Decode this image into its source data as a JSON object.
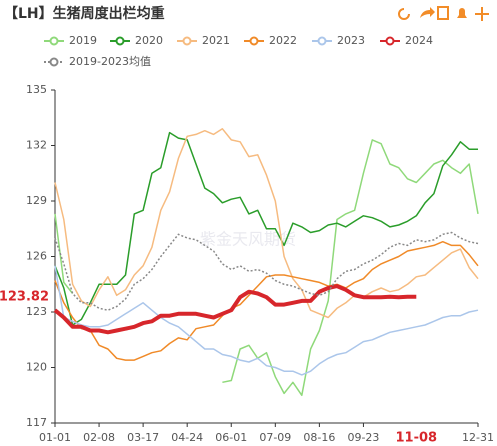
{
  "chart_data": {
    "type": "line",
    "title": "【LH】生猪周度出栏均重",
    "watermark": "紫金天风期货",
    "categories": [
      "01-01",
      null,
      null,
      null,
      null,
      "02-08",
      null,
      null,
      null,
      null,
      "03-17",
      null,
      null,
      null,
      null,
      "04-24",
      null,
      null,
      null,
      null,
      "06-01",
      null,
      null,
      null,
      null,
      "07-09",
      null,
      null,
      null,
      null,
      "08-16",
      null,
      null,
      null,
      null,
      "09-23",
      null,
      null,
      null,
      null,
      null,
      null,
      null,
      null,
      null,
      null,
      null,
      null,
      "12-31"
    ],
    "ylim": [
      117,
      135
    ],
    "yticks": [
      117,
      120,
      123,
      126,
      129,
      132,
      135
    ],
    "pointer": {
      "x": "11-08",
      "y": 123.82
    },
    "series": [
      {
        "name": "2019",
        "color": "#8fd97a",
        "dash": false,
        "width": 1.5,
        "values": [
          128.3,
          124.6,
          124.0,
          null,
          null,
          null,
          null,
          null,
          null,
          null,
          null,
          null,
          null,
          null,
          null,
          null,
          null,
          null,
          null,
          119.2,
          119.3,
          121.0,
          121.2,
          120.5,
          120.8,
          119.5,
          118.6,
          119.2,
          118.5,
          121.0,
          122.0,
          123.6,
          128.0,
          128.3,
          128.5,
          130.5,
          132.3,
          132.1,
          131.0,
          130.8,
          130.2,
          130.0,
          130.5,
          131.0,
          131.2,
          130.8,
          130.5,
          131.0,
          128.3
        ]
      },
      {
        "name": "2020",
        "color": "#2a9d2a",
        "dash": false,
        "width": 1.5,
        "values": [
          125.5,
          124.3,
          122.3,
          122.6,
          123.5,
          124.5,
          124.5,
          124.5,
          125.0,
          128.3,
          128.5,
          130.5,
          130.8,
          132.7,
          132.4,
          132.3,
          131.0,
          129.7,
          129.4,
          128.9,
          129.1,
          129.2,
          128.3,
          128.5,
          127.5,
          127.5,
          126.6,
          127.8,
          127.6,
          127.3,
          127.4,
          127.7,
          127.8,
          127.6,
          127.9,
          128.2,
          128.1,
          127.9,
          127.6,
          127.7,
          127.9,
          128.2,
          128.9,
          129.4,
          130.9,
          131.5,
          132.2,
          131.8,
          131.8
        ]
      },
      {
        "name": "2021",
        "color": "#f6bb80",
        "dash": false,
        "width": 1.5,
        "values": [
          130.0,
          128.0,
          124.5,
          123.6,
          123.3,
          124.2,
          124.9,
          123.9,
          124.2,
          125.0,
          125.5,
          126.5,
          128.5,
          129.5,
          131.3,
          132.5,
          132.6,
          132.8,
          132.6,
          132.9,
          132.3,
          132.2,
          131.4,
          131.5,
          130.4,
          129.0,
          126.0,
          124.8,
          124.2,
          123.1,
          122.9,
          122.7,
          123.2,
          123.5,
          123.9,
          123.8,
          124.1,
          124.3,
          124.1,
          124.2,
          124.5,
          124.9,
          125.0,
          125.4,
          125.8,
          126.2,
          126.4,
          125.4,
          124.8
        ]
      },
      {
        "name": "2022",
        "color": "#f08a28",
        "dash": false,
        "width": 1.5,
        "values": [
          124.7,
          123.5,
          122.7,
          122.1,
          122.0,
          121.2,
          121.0,
          120.5,
          120.4,
          120.4,
          120.6,
          120.8,
          120.9,
          121.3,
          121.6,
          121.5,
          122.1,
          122.2,
          122.3,
          122.8,
          123.2,
          123.4,
          123.9,
          124.4,
          124.9,
          125.0,
          125.0,
          124.9,
          124.8,
          124.7,
          124.6,
          124.4,
          124.5,
          124.3,
          124.6,
          124.8,
          125.3,
          125.6,
          125.8,
          126.0,
          126.3,
          126.4,
          126.5,
          126.6,
          126.8,
          126.6,
          126.6,
          126.1,
          125.5
        ]
      },
      {
        "name": "2023",
        "color": "#abc6ea",
        "dash": false,
        "width": 1.5,
        "values": [
          125.5,
          122.7,
          122.5,
          122.3,
          122.2,
          122.2,
          122.3,
          122.6,
          122.9,
          123.2,
          123.5,
          123.1,
          122.7,
          122.4,
          122.2,
          121.8,
          121.4,
          121.0,
          121.0,
          120.7,
          120.6,
          120.4,
          120.3,
          120.5,
          120.1,
          120.0,
          119.8,
          119.8,
          119.6,
          119.8,
          120.2,
          120.5,
          120.7,
          120.8,
          121.1,
          121.4,
          121.5,
          121.7,
          121.9,
          122.0,
          122.1,
          122.2,
          122.3,
          122.5,
          122.7,
          122.8,
          122.8,
          123.0,
          123.1
        ]
      },
      {
        "name": "2024",
        "color": "#d7262b",
        "dash": false,
        "width": 4,
        "values": [
          123.1,
          122.7,
          122.2,
          122.2,
          122.0,
          122.0,
          121.9,
          122.0,
          122.1,
          122.2,
          122.4,
          122.5,
          122.8,
          122.8,
          122.9,
          122.9,
          122.9,
          122.8,
          122.7,
          122.9,
          123.1,
          123.8,
          124.1,
          124.0,
          123.8,
          123.4,
          123.4,
          123.5,
          123.6,
          123.6,
          124.1,
          124.3,
          124.4,
          124.2,
          123.9,
          123.8,
          123.8,
          123.8,
          123.82,
          123.8,
          123.82,
          123.82,
          null,
          null,
          null,
          null,
          null,
          null,
          null
        ]
      },
      {
        "name": "2019-2023均值",
        "color": "#888888",
        "dash": true,
        "width": 1.5,
        "values": [
          127.0,
          125.6,
          124.0,
          123.5,
          123.5,
          123.2,
          123.1,
          123.3,
          123.7,
          124.5,
          124.8,
          125.3,
          126.0,
          126.6,
          127.2,
          127.0,
          126.9,
          126.6,
          126.3,
          125.6,
          125.3,
          125.5,
          125.2,
          125.3,
          125.1,
          124.7,
          124.5,
          124.4,
          124.2,
          124.0,
          123.9,
          124.1,
          124.8,
          125.2,
          125.3,
          125.6,
          125.8,
          126.1,
          126.5,
          126.7,
          126.6,
          126.9,
          126.8,
          126.9,
          127.2,
          127.3,
          127.0,
          126.8,
          126.7
        ]
      }
    ]
  }
}
